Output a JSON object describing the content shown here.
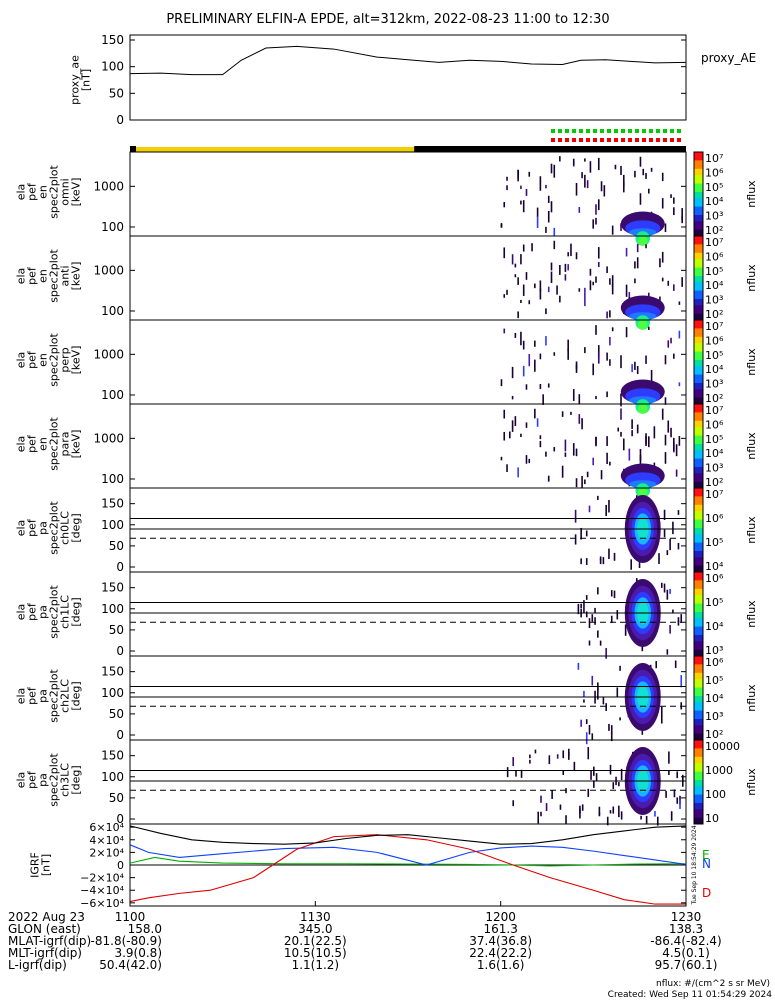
{
  "title": "PRELIMINARY ELFIN-A EPDE, alt=312km, 2022-08-23 11:00 to 12:30",
  "colors": {
    "yellow_bar": "#f2d000",
    "black_bar": "#000000",
    "green_dots": "#00cc00",
    "red_dots": "#ee0000",
    "ae_line": "#000000",
    "igrf_e": "#00b000",
    "igrf_n": "#1040ff",
    "igrf_d": "#e00000",
    "igrf_total": "#000000"
  },
  "chart_data": [
    {
      "type": "line",
      "panel": "proxy_ae",
      "ylabel_lines": [
        "proxy_ae",
        "[nT]"
      ],
      "legend": "proxy_AE",
      "yticks": [
        "150",
        "100",
        "50",
        "0"
      ],
      "ylim": [
        0,
        150
      ],
      "x": [
        0,
        5,
        10,
        15,
        18,
        22,
        27,
        33,
        40,
        45,
        50,
        55,
        60,
        65,
        70,
        73,
        77,
        81,
        85,
        90
      ],
      "values": [
        87,
        88,
        85,
        85,
        112,
        135,
        138,
        133,
        118,
        113,
        108,
        112,
        110,
        105,
        104,
        112,
        113,
        110,
        107,
        108
      ]
    },
    {
      "type": "heatmap",
      "panel": "en_omni",
      "ylabel_lines": [
        "ela",
        "pef",
        "en",
        "spec2plot",
        "omni",
        "[keV]"
      ],
      "yticks": [
        "1000",
        "100"
      ],
      "ylim": [
        60,
        7000
      ],
      "yscale": "log",
      "colorbar": {
        "label": "nflux",
        "ticks": [
          "10^7",
          "10^6",
          "10^5",
          "10^4",
          "10^3",
          "10^2"
        ]
      }
    },
    {
      "type": "heatmap",
      "panel": "en_anti",
      "ylabel_lines": [
        "ela",
        "pef",
        "en",
        "spec2plot",
        "anti",
        "[keV]"
      ],
      "yticks": [
        "1000",
        "100"
      ],
      "ylim": [
        60,
        7000
      ],
      "yscale": "log",
      "colorbar": {
        "label": "nflux",
        "ticks": [
          "10^7",
          "10^6",
          "10^5",
          "10^4",
          "10^3",
          "10^2"
        ]
      }
    },
    {
      "type": "heatmap",
      "panel": "en_perp",
      "ylabel_lines": [
        "ela",
        "pef",
        "en",
        "spec2plot",
        "perp",
        "[keV]"
      ],
      "yticks": [
        "1000",
        "100"
      ],
      "ylim": [
        60,
        7000
      ],
      "yscale": "log",
      "colorbar": {
        "label": "nflux",
        "ticks": [
          "10^7",
          "10^6",
          "10^5",
          "10^4",
          "10^3",
          "10^2"
        ]
      }
    },
    {
      "type": "heatmap",
      "panel": "en_para",
      "ylabel_lines": [
        "ela",
        "pef",
        "en",
        "spec2plot",
        "para",
        "[keV]"
      ],
      "yticks": [
        "1000",
        "100"
      ],
      "ylim": [
        60,
        7000
      ],
      "yscale": "log",
      "colorbar": {
        "label": "nflux",
        "ticks": [
          "10^7",
          "10^6",
          "10^5",
          "10^4",
          "10^3",
          "10^2"
        ]
      }
    },
    {
      "type": "heatmap",
      "panel": "pa_ch0LC",
      "ylabel_lines": [
        "ela",
        "pef",
        "pa",
        "spec2plot",
        "ch0LC",
        "[deg]"
      ],
      "yticks": [
        "150",
        "100",
        "50",
        "0"
      ],
      "ylim": [
        0,
        180
      ],
      "colorbar": {
        "label": "nflux",
        "ticks": [
          "10^7",
          "10^6",
          "10^5",
          "10^4"
        ]
      }
    },
    {
      "type": "heatmap",
      "panel": "pa_ch1LC",
      "ylabel_lines": [
        "ela",
        "pef",
        "pa",
        "spec2plot",
        "ch1LC",
        "[deg]"
      ],
      "yticks": [
        "150",
        "100",
        "50",
        "0"
      ],
      "ylim": [
        0,
        180
      ],
      "colorbar": {
        "label": "nflux",
        "ticks": [
          "10^6",
          "10^5",
          "10^4",
          "10^3"
        ]
      }
    },
    {
      "type": "heatmap",
      "panel": "pa_ch2LC",
      "ylabel_lines": [
        "ela",
        "pef",
        "pa",
        "spec2plot",
        "ch2LC",
        "[deg]"
      ],
      "yticks": [
        "150",
        "100",
        "50",
        "0"
      ],
      "ylim": [
        0,
        180
      ],
      "colorbar": {
        "label": "nflux",
        "ticks": [
          "10^6",
          "10^5",
          "10^4",
          "10^3",
          "10^2"
        ]
      }
    },
    {
      "type": "heatmap",
      "panel": "pa_ch3LC",
      "ylabel_lines": [
        "ela",
        "pef",
        "pa",
        "spec2plot",
        "ch3LC",
        "[deg]"
      ],
      "yticks": [
        "150",
        "100",
        "50",
        "0"
      ],
      "ylim": [
        0,
        180
      ],
      "colorbar": {
        "label": "nflux",
        "ticks": [
          "10000",
          "1000",
          "100",
          "10"
        ]
      }
    },
    {
      "type": "line",
      "panel": "igrf",
      "ylabel_lines": [
        "IGRF",
        "[nT]"
      ],
      "yticks": [
        "6×10⁴",
        "4×10⁴",
        "2×10⁴",
        "0",
        "−2×10⁴",
        "−4×10⁴",
        "−6×10⁴"
      ],
      "ylim": [
        -65000,
        65000
      ],
      "series": [
        {
          "name": "E",
          "x": [
            0,
            4,
            8,
            15,
            25,
            35,
            45,
            55,
            62,
            68,
            75,
            82,
            90
          ],
          "values": [
            3000,
            12000,
            6000,
            3000,
            2000,
            2000,
            1500,
            1000,
            0,
            -1500,
            0,
            1500,
            2000
          ]
        },
        {
          "name": "N",
          "x": [
            0,
            3,
            8,
            15,
            25,
            33,
            40,
            48,
            55,
            60,
            65,
            70,
            75,
            80,
            85,
            90
          ],
          "values": [
            32000,
            20000,
            12000,
            18000,
            26000,
            28000,
            20000,
            0,
            20000,
            27000,
            30000,
            28000,
            22000,
            15000,
            8000,
            1000
          ]
        },
        {
          "name": "D",
          "x": [
            0,
            3,
            8,
            13,
            20,
            27,
            33,
            40,
            48,
            55,
            62,
            68,
            75,
            80,
            85,
            90
          ],
          "values": [
            -58000,
            -52000,
            -45000,
            -40000,
            -20000,
            25000,
            45000,
            48000,
            40000,
            25000,
            0,
            -20000,
            -40000,
            -55000,
            -62000,
            -62000
          ]
        },
        {
          "name": "",
          "x": [
            0,
            5,
            10,
            15,
            20,
            25,
            30,
            35,
            40,
            45,
            50,
            55,
            60,
            65,
            70,
            75,
            80,
            85,
            90
          ],
          "values": [
            62000,
            50000,
            40000,
            36000,
            34000,
            33000,
            35000,
            42000,
            47000,
            48000,
            43000,
            38000,
            33000,
            34000,
            40000,
            48000,
            54000,
            60000,
            62000
          ]
        }
      ]
    }
  ],
  "labels": {
    "proxy_ae_legend": "proxy_AE",
    "igrf_e": "E",
    "igrf_n": "N",
    "igrf_d": "D",
    "nflux": "nflux",
    "side_note": "Tue Sep 10 18:54:29 2024"
  },
  "bottom_table": {
    "row_labels": [
      "2022 Aug 23",
      "GLON (east)",
      "MLAT-igrf(dip)",
      "MLT-igrf(dip)",
      "L-igrf(dip)"
    ],
    "first_col_values": [
      "",
      "158.0",
      "-81.8(-80.9)",
      "3.9(0.8)",
      "50.4(42.0)"
    ],
    "time_ticks": [
      "1100",
      "1130",
      "1200",
      "1230"
    ],
    "columns": [
      {
        "values": [
          "345.0",
          "20.1(22.5)",
          "10.5(10.5)",
          "1.1(1.2)"
        ]
      },
      {
        "values": [
          "161.3",
          "37.4(36.8)",
          "22.4(22.2)",
          "1.6(1.6)"
        ]
      },
      {
        "values": [
          "138.3",
          "-86.4(-82.4)",
          "4.5(0.1)",
          "95.7(60.1)"
        ]
      }
    ]
  },
  "footer": {
    "units": "nflux: #/(cm^2 s sr MeV)",
    "created": "Created: Wed Sep 11 01:54:29 2024"
  }
}
